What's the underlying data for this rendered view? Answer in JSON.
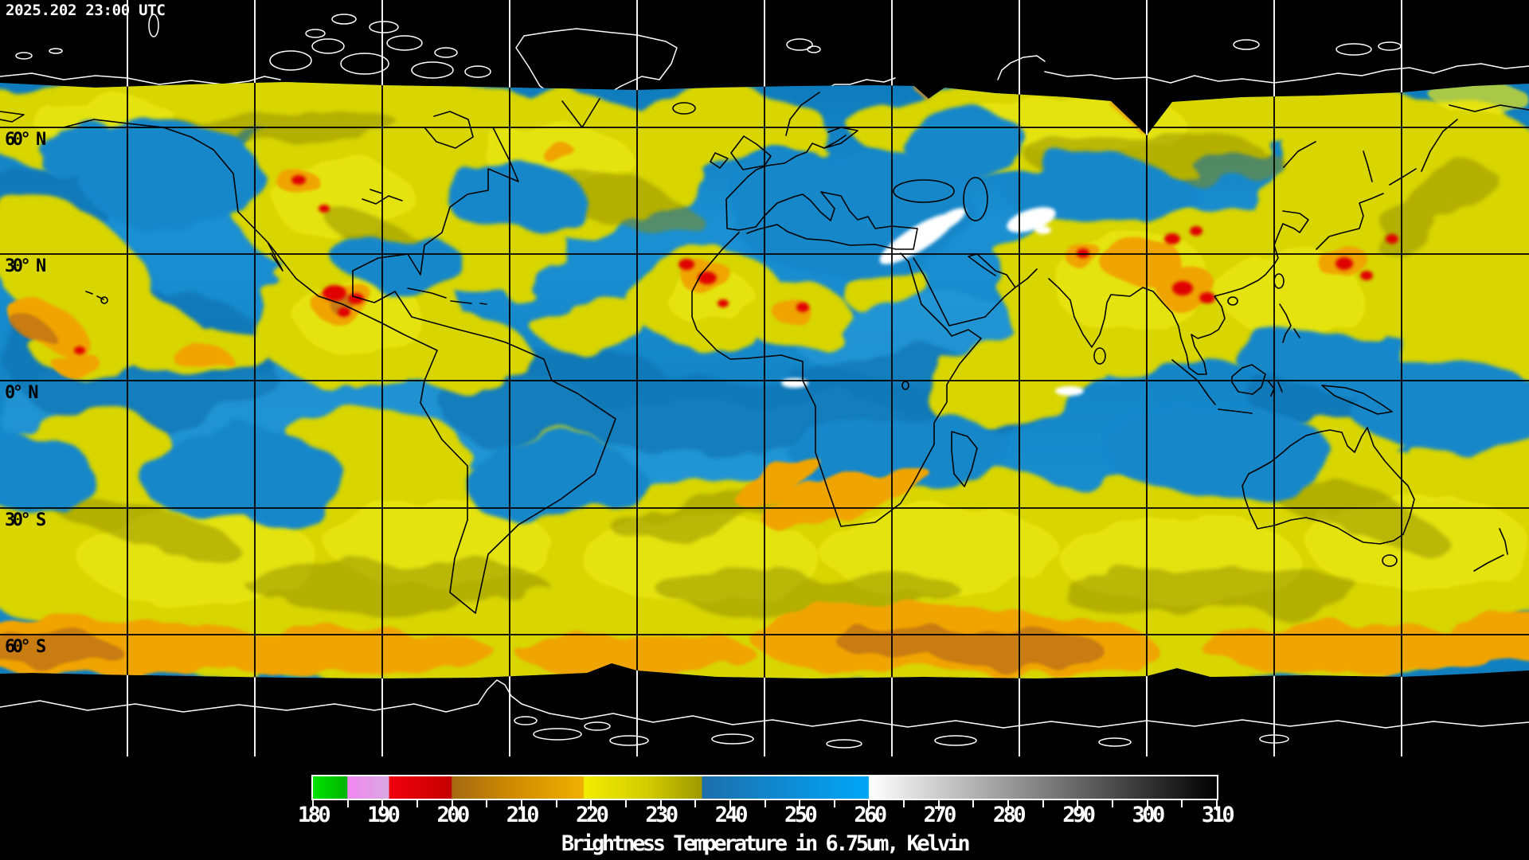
{
  "timestamp": "2025.202 23:00 UTC",
  "map": {
    "latitude_labels": [
      "60° N",
      "30° N",
      "0° N",
      "30° S",
      "60° S"
    ],
    "grid": {
      "latitudes_deg": [
        60,
        30,
        0,
        -30,
        -60
      ],
      "longitude_spacing_deg": 30
    }
  },
  "colorbar": {
    "caption": "Brightness Temperature in 6.75um, Kelvin",
    "min": 180,
    "max": 310,
    "tick_step": 5,
    "label_step": 10,
    "stops": [
      {
        "v": 180,
        "c": "#00e400"
      },
      {
        "v": 184.9,
        "c": "#00b400"
      },
      {
        "v": 185,
        "c": "#f187f1"
      },
      {
        "v": 190.9,
        "c": "#d9a8e2"
      },
      {
        "v": 191,
        "c": "#f2000f"
      },
      {
        "v": 199.9,
        "c": "#c40000"
      },
      {
        "v": 200,
        "c": "#a46a12"
      },
      {
        "v": 209,
        "c": "#d18c00"
      },
      {
        "v": 218.9,
        "c": "#efb000"
      },
      {
        "v": 219,
        "c": "#f1ec00"
      },
      {
        "v": 228,
        "c": "#d3cd00"
      },
      {
        "v": 235.9,
        "c": "#9d9900"
      },
      {
        "v": 236,
        "c": "#1e6fab"
      },
      {
        "v": 248,
        "c": "#0e8bd3"
      },
      {
        "v": 259.9,
        "c": "#00a7f7"
      },
      {
        "v": 260,
        "c": "#ffffff"
      },
      {
        "v": 310,
        "c": "#000000"
      }
    ]
  }
}
